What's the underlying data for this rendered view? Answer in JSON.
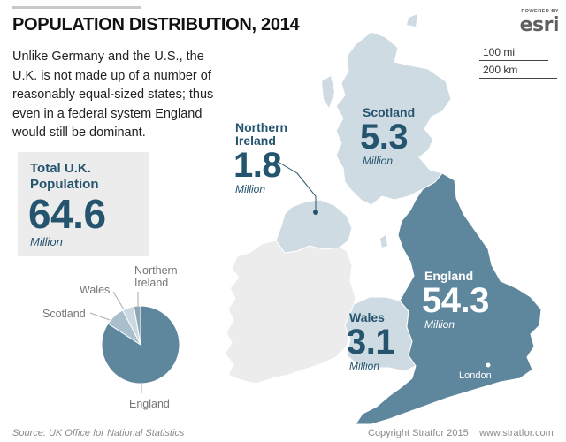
{
  "title": "POPULATION DISTRIBUTION, 2014",
  "description": "Unlike Germany and the U.S., the U.K. is not made up of a number of reasonably equal-sized states; thus even in a federal system England would still be dominant.",
  "logo": {
    "powered_by": "POWERED BY",
    "wordmark": "esri"
  },
  "scale": {
    "miles_label": "100 mi",
    "km_label": "200 km"
  },
  "total": {
    "label": "Total U.K. Population",
    "value": "64.6",
    "unit": "Million"
  },
  "regions": {
    "scotland": {
      "name": "Scotland",
      "value": "5.3",
      "unit": "Million"
    },
    "northern_ireland": {
      "name": "Northern Ireland",
      "value": "1.8",
      "unit": "Million"
    },
    "england": {
      "name": "England",
      "value": "54.3",
      "unit": "Million"
    },
    "wales": {
      "name": "Wales",
      "value": "3.1",
      "unit": "Million"
    }
  },
  "city": {
    "name": "London"
  },
  "pie": {
    "slices": [
      {
        "label": "England",
        "value": 54.3,
        "color": "#5e879d"
      },
      {
        "label": "Scotland",
        "value": 5.3,
        "color": "#a9bfcc"
      },
      {
        "label": "Wales",
        "value": 3.1,
        "color": "#cbd8e0"
      },
      {
        "label": "Northern Ireland",
        "value": 1.8,
        "color": "#8ea7b5"
      }
    ]
  },
  "colors": {
    "england": "#5e879d",
    "other_uk": "#cfdbe2",
    "ireland": "#ececec",
    "accent": "#25546e"
  },
  "footer": {
    "source": "Source: UK Office for National Statistics",
    "copyright": "Copyright Stratfor 2015",
    "url": "www.stratfor.com"
  }
}
